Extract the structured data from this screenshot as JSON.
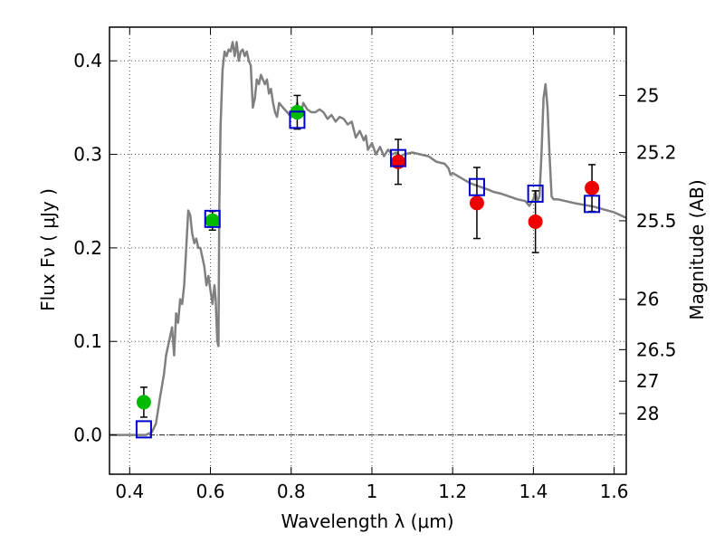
{
  "chart_data": {
    "type": "scatter",
    "xlabel": "Wavelength  λ (μm)",
    "ylabel": "Flux  Fν  ( μJy )",
    "ylabel_right": "Magnitude (AB)",
    "xlim": [
      0.35,
      1.63
    ],
    "ylim": [
      -0.042,
      0.436
    ],
    "grid": true,
    "xticks": [
      0.4,
      0.6,
      0.8,
      1.0,
      1.2,
      1.4,
      1.6
    ],
    "xtick_labels": [
      "0.4",
      "0.6",
      "0.8",
      "1",
      "1.2",
      "1.4",
      "1.6"
    ],
    "yticks": [
      0.0,
      0.1,
      0.2,
      0.3,
      0.4
    ],
    "ytick_labels": [
      "0.0",
      "0.1",
      "0.2",
      "0.3",
      "0.4"
    ],
    "right_ticks": [
      {
        "label": "25",
        "flux": 0.363
      },
      {
        "label": "25.2",
        "flux": 0.302
      },
      {
        "label": "25.5",
        "flux": 0.229
      },
      {
        "label": "26",
        "flux": 0.145
      },
      {
        "label": "26.5",
        "flux": 0.0912
      },
      {
        "label": "27",
        "flux": 0.0575
      },
      {
        "label": "28",
        "flux": 0.0229
      }
    ],
    "reference_line_y": 0.0,
    "colors": {
      "model": "#808080",
      "green": "#00bb00",
      "red": "#ee0000",
      "box": "#0000cc",
      "grid": "#555555"
    },
    "series": [
      {
        "kind": "model-spectrum",
        "points": [
          [
            0.35,
            0.0
          ],
          [
            0.44,
            0.0
          ],
          [
            0.455,
            0.003
          ],
          [
            0.465,
            0.012
          ],
          [
            0.475,
            0.04
          ],
          [
            0.485,
            0.065
          ],
          [
            0.49,
            0.085
          ],
          [
            0.5,
            0.105
          ],
          [
            0.505,
            0.115
          ],
          [
            0.51,
            0.085
          ],
          [
            0.515,
            0.13
          ],
          [
            0.52,
            0.12
          ],
          [
            0.525,
            0.145
          ],
          [
            0.53,
            0.14
          ],
          [
            0.535,
            0.16
          ],
          [
            0.54,
            0.2
          ],
          [
            0.545,
            0.24
          ],
          [
            0.55,
            0.235
          ],
          [
            0.555,
            0.215
          ],
          [
            0.56,
            0.205
          ],
          [
            0.565,
            0.21
          ],
          [
            0.57,
            0.2
          ],
          [
            0.575,
            0.2
          ],
          [
            0.58,
            0.19
          ],
          [
            0.585,
            0.18
          ],
          [
            0.59,
            0.16
          ],
          [
            0.595,
            0.17
          ],
          [
            0.6,
            0.155
          ],
          [
            0.605,
            0.14
          ],
          [
            0.61,
            0.16
          ],
          [
            0.613,
            0.145
          ],
          [
            0.617,
            0.1
          ],
          [
            0.62,
            0.095
          ],
          [
            0.622,
            0.24
          ],
          [
            0.625,
            0.33
          ],
          [
            0.63,
            0.39
          ],
          [
            0.635,
            0.41
          ],
          [
            0.64,
            0.405
          ],
          [
            0.645,
            0.412
          ],
          [
            0.65,
            0.41
          ],
          [
            0.655,
            0.42
          ],
          [
            0.66,
            0.405
          ],
          [
            0.665,
            0.42
          ],
          [
            0.67,
            0.4
          ],
          [
            0.675,
            0.41
          ],
          [
            0.68,
            0.412
          ],
          [
            0.685,
            0.405
          ],
          [
            0.69,
            0.41
          ],
          [
            0.695,
            0.4
          ],
          [
            0.7,
            0.395
          ],
          [
            0.705,
            0.35
          ],
          [
            0.71,
            0.36
          ],
          [
            0.715,
            0.38
          ],
          [
            0.72,
            0.375
          ],
          [
            0.725,
            0.385
          ],
          [
            0.73,
            0.38
          ],
          [
            0.735,
            0.375
          ],
          [
            0.74,
            0.38
          ],
          [
            0.745,
            0.365
          ],
          [
            0.75,
            0.37
          ],
          [
            0.755,
            0.355
          ],
          [
            0.76,
            0.345
          ],
          [
            0.765,
            0.34
          ],
          [
            0.77,
            0.355
          ],
          [
            0.78,
            0.35
          ],
          [
            0.79,
            0.345
          ],
          [
            0.8,
            0.34
          ],
          [
            0.81,
            0.345
          ],
          [
            0.815,
            0.355
          ],
          [
            0.82,
            0.34
          ],
          [
            0.825,
            0.345
          ],
          [
            0.83,
            0.355
          ],
          [
            0.84,
            0.348
          ],
          [
            0.85,
            0.345
          ],
          [
            0.86,
            0.345
          ],
          [
            0.87,
            0.348
          ],
          [
            0.88,
            0.345
          ],
          [
            0.89,
            0.338
          ],
          [
            0.9,
            0.342
          ],
          [
            0.91,
            0.335
          ],
          [
            0.92,
            0.34
          ],
          [
            0.93,
            0.338
          ],
          [
            0.94,
            0.332
          ],
          [
            0.95,
            0.335
          ],
          [
            0.96,
            0.318
          ],
          [
            0.97,
            0.325
          ],
          [
            0.98,
            0.315
          ],
          [
            0.985,
            0.32
          ],
          [
            0.99,
            0.305
          ],
          [
            1.0,
            0.312
          ],
          [
            1.01,
            0.3
          ],
          [
            1.02,
            0.308
          ],
          [
            1.03,
            0.298
          ],
          [
            1.04,
            0.305
          ],
          [
            1.05,
            0.3
          ],
          [
            1.06,
            0.302
          ],
          [
            1.07,
            0.298
          ],
          [
            1.08,
            0.3
          ],
          [
            1.1,
            0.302
          ],
          [
            1.12,
            0.3
          ],
          [
            1.14,
            0.298
          ],
          [
            1.16,
            0.292
          ],
          [
            1.18,
            0.29
          ],
          [
            1.19,
            0.285
          ],
          [
            1.195,
            0.278
          ],
          [
            1.2,
            0.28
          ],
          [
            1.22,
            0.275
          ],
          [
            1.24,
            0.27
          ],
          [
            1.25,
            0.268
          ],
          [
            1.27,
            0.265
          ],
          [
            1.29,
            0.262
          ],
          [
            1.3,
            0.26
          ],
          [
            1.32,
            0.258
          ],
          [
            1.34,
            0.255
          ],
          [
            1.36,
            0.252
          ],
          [
            1.38,
            0.25
          ],
          [
            1.39,
            0.245
          ],
          [
            1.4,
            0.252
          ],
          [
            1.405,
            0.26
          ],
          [
            1.41,
            0.25
          ],
          [
            1.415,
            0.255
          ],
          [
            1.42,
            0.3
          ],
          [
            1.425,
            0.36
          ],
          [
            1.43,
            0.375
          ],
          [
            1.435,
            0.35
          ],
          [
            1.44,
            0.3
          ],
          [
            1.445,
            0.255
          ],
          [
            1.45,
            0.252
          ],
          [
            1.46,
            0.252
          ],
          [
            1.5,
            0.248
          ],
          [
            1.55,
            0.244
          ],
          [
            1.6,
            0.238
          ],
          [
            1.63,
            0.232
          ]
        ]
      },
      {
        "kind": "observed-green",
        "points": [
          {
            "x": 0.435,
            "y": 0.035,
            "err": 0.016
          },
          {
            "x": 0.605,
            "y": 0.229,
            "err": 0.01
          },
          {
            "x": 0.815,
            "y": 0.345,
            "err": 0.018
          }
        ]
      },
      {
        "kind": "observed-red",
        "points": [
          {
            "x": 1.065,
            "y": 0.292,
            "err": 0.024
          },
          {
            "x": 1.26,
            "y": 0.248,
            "err": 0.038
          },
          {
            "x": 1.405,
            "y": 0.228,
            "err": 0.033
          },
          {
            "x": 1.545,
            "y": 0.264,
            "err": 0.025
          }
        ]
      },
      {
        "kind": "model-photometry-boxes",
        "points": [
          {
            "x": 0.435,
            "y": 0.006
          },
          {
            "x": 0.605,
            "y": 0.231
          },
          {
            "x": 0.815,
            "y": 0.337
          },
          {
            "x": 1.065,
            "y": 0.296
          },
          {
            "x": 1.26,
            "y": 0.265
          },
          {
            "x": 1.405,
            "y": 0.258
          },
          {
            "x": 1.545,
            "y": 0.247
          }
        ]
      }
    ]
  }
}
